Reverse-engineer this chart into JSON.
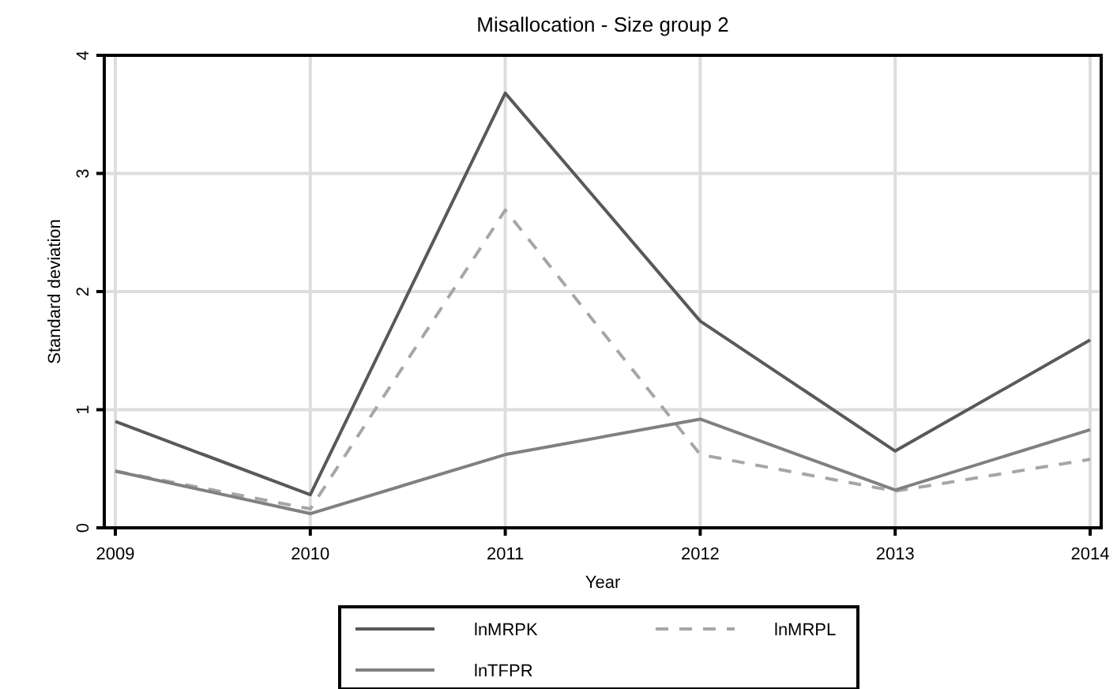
{
  "chart_data": {
    "type": "line",
    "title": "Misallocation - Size group 2",
    "xlabel": "Year",
    "ylabel": "Standard deviation",
    "x": [
      2009,
      2010,
      2011,
      2012,
      2013,
      2014
    ],
    "xlim": [
      2009,
      2014
    ],
    "xticks": [
      2009,
      2010,
      2011,
      2012,
      2013,
      2014
    ],
    "ylim": [
      0,
      4
    ],
    "yticks": [
      0,
      1,
      2,
      3,
      4
    ],
    "grid": true,
    "legend": "bottom",
    "marker": "none",
    "series": [
      {
        "name": "lnMRPK",
        "color": "#595959",
        "line_style": "solid",
        "values": [
          0.9,
          0.28,
          3.68,
          1.75,
          0.65,
          1.59
        ]
      },
      {
        "name": "lnMRPL",
        "color": "#a6a6a6",
        "line_style": "dashed",
        "values": [
          0.48,
          0.16,
          2.69,
          0.62,
          0.31,
          0.58
        ]
      },
      {
        "name": "lnTFPR",
        "color": "#808080",
        "line_style": "solid",
        "values": [
          0.48,
          0.12,
          0.62,
          0.92,
          0.32,
          0.83
        ]
      }
    ]
  }
}
